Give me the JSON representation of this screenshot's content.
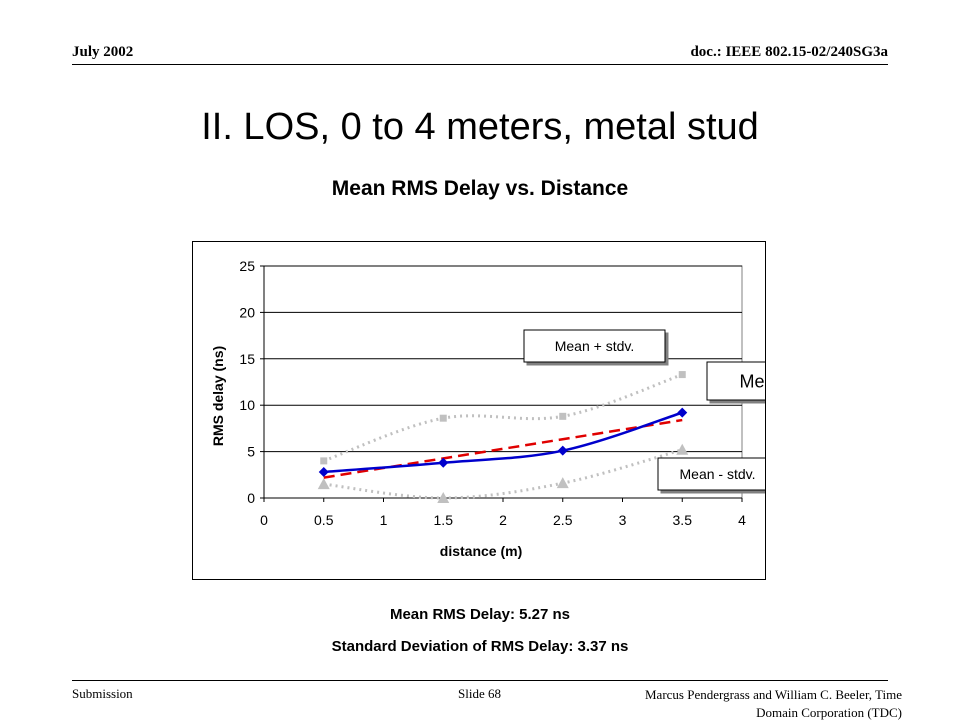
{
  "header": {
    "date": "July 2002",
    "doc": "doc.: IEEE 802.15-02/240SG3a"
  },
  "slide_title": "II.  LOS, 0 to 4 meters, metal stud",
  "stats": {
    "mean": "Mean RMS Delay:  5.27 ns",
    "stdev": "Standard Deviation of RMS Delay:  3.37 ns"
  },
  "footer": {
    "left": "Submission",
    "middle": "Slide 68",
    "right_line1": "Marcus Pendergrass and William  C. Beeler, Time",
    "right_line2": "Domain Corporation (TDC)"
  },
  "colors": {
    "mean": "#0000cc",
    "trend": "#e00000",
    "bounds": "#c0c0c0"
  },
  "chart_data": {
    "type": "line",
    "title": "Mean RMS Delay vs. Distance",
    "xlabel": "distance (m)",
    "ylabel": "RMS delay (ns)",
    "xlim": [
      0,
      4
    ],
    "ylim": [
      0,
      25
    ],
    "xticks": [
      0,
      0.5,
      1,
      1.5,
      2,
      2.5,
      3,
      3.5,
      4
    ],
    "yticks": [
      0,
      5,
      10,
      15,
      20,
      25
    ],
    "grid": "horizontal",
    "x": [
      0.5,
      1.5,
      2.5,
      3.5
    ],
    "series": [
      {
        "name": "Mean RMS Delay",
        "values": [
          2.8,
          3.8,
          5.1,
          9.2
        ],
        "marker": "diamond",
        "style": "solid",
        "color": "#0000cc"
      },
      {
        "name": "Mean + stdv.",
        "values": [
          4.0,
          8.6,
          8.8,
          13.3
        ],
        "marker": "square",
        "style": "dotted",
        "color": "#c0c0c0"
      },
      {
        "name": "Mean - stdv.",
        "values": [
          1.5,
          0.0,
          1.6,
          5.2
        ],
        "marker": "triangle",
        "style": "dotted",
        "color": "#c0c0c0"
      }
    ],
    "trendline": {
      "style": "dashed",
      "color": "#e00000",
      "from": [
        0.5,
        2.2
      ],
      "to": [
        3.5,
        8.4
      ]
    },
    "annotations": [
      "Mean + stdv.",
      "Mean RMS Delay",
      "Mean - stdv."
    ]
  }
}
